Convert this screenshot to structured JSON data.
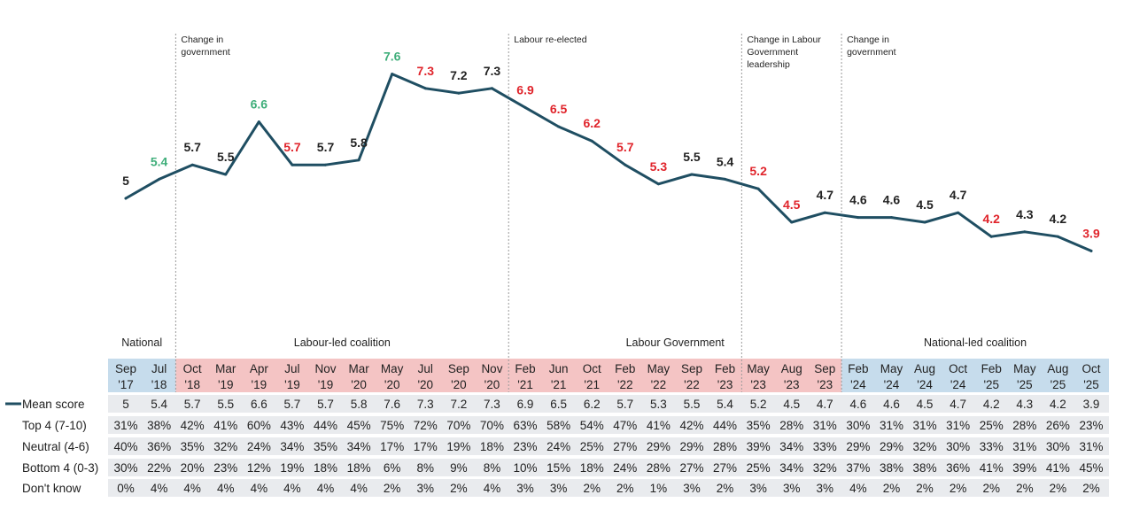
{
  "chart_data": {
    "type": "line",
    "series": [
      {
        "name": "Mean score",
        "values": [
          5,
          5.4,
          5.7,
          5.5,
          6.6,
          5.7,
          5.7,
          5.8,
          7.6,
          7.3,
          7.2,
          7.3,
          6.9,
          6.5,
          6.2,
          5.7,
          5.3,
          5.5,
          5.4,
          5.2,
          4.5,
          4.7,
          4.6,
          4.6,
          4.5,
          4.7,
          4.2,
          4.3,
          4.2,
          3.9
        ]
      }
    ],
    "categories": [
      [
        "Sep",
        "'17"
      ],
      [
        "Jul",
        "'18"
      ],
      [
        "Oct",
        "'18"
      ],
      [
        "Mar",
        "'19"
      ],
      [
        "Apr",
        "'19"
      ],
      [
        "Jul",
        "'19"
      ],
      [
        "Nov",
        "'19"
      ],
      [
        "Mar",
        "'20"
      ],
      [
        "May",
        "'20"
      ],
      [
        "Jul",
        "'20"
      ],
      [
        "Sep",
        "'20"
      ],
      [
        "Nov",
        "'20"
      ],
      [
        "Feb",
        "'21"
      ],
      [
        "Jun",
        "'21"
      ],
      [
        "Oct",
        "'21"
      ],
      [
        "Feb",
        "'22"
      ],
      [
        "May",
        "'22"
      ],
      [
        "Sep",
        "'22"
      ],
      [
        "Feb",
        "'23"
      ],
      [
        "May",
        "'23"
      ],
      [
        "Aug",
        "'23"
      ],
      [
        "Sep",
        "'23"
      ],
      [
        "Feb",
        "'24"
      ],
      [
        "May",
        "'24"
      ],
      [
        "Aug",
        "'24"
      ],
      [
        "Oct",
        "'24"
      ],
      [
        "Feb",
        "'25"
      ],
      [
        "May",
        "'25"
      ],
      [
        "Aug",
        "'25"
      ],
      [
        "Oct",
        "'25"
      ]
    ],
    "label_colors": [
      "black",
      "green",
      "black",
      "black",
      "green",
      "red",
      "black",
      "black",
      "green",
      "red",
      "black",
      "black",
      "red",
      "red",
      "red",
      "red",
      "red",
      "black",
      "black",
      "red",
      "red",
      "black",
      "black",
      "black",
      "black",
      "black",
      "red",
      "black",
      "black",
      "red"
    ],
    "label_texts": [
      "5",
      "5.4",
      "5.7",
      "5.5",
      "6.6",
      "5.7",
      "5.7",
      "5.8",
      "7.6",
      "7.3",
      "7.2",
      "7.3",
      "6.9",
      "6.5",
      "6.2",
      "5.7",
      "5.3",
      "5.5",
      "5.4",
      "5.2",
      "4.5",
      "4.7",
      "4.6",
      "4.6",
      "4.5",
      "4.7",
      "4.2",
      "4.3",
      "4.2",
      "3.9"
    ],
    "y_range": [
      3.0,
      8.5
    ],
    "events": [
      {
        "after_index": 1,
        "lines": [
          "Change in",
          "government"
        ]
      },
      {
        "after_index": 11,
        "lines": [
          "Labour re-elected"
        ]
      },
      {
        "after_index": 18,
        "lines": [
          "Change in Labour",
          "Government",
          "leadership"
        ]
      },
      {
        "after_index": 21,
        "lines": [
          "Change in",
          "government"
        ]
      }
    ],
    "periods": [
      {
        "label": "National",
        "start": 0,
        "end": 1,
        "shade": "blue"
      },
      {
        "label": "Labour-led coalition",
        "start": 2,
        "end": 11,
        "shade": "pink"
      },
      {
        "label": "Labour Government",
        "start": 12,
        "end": 21,
        "shade": "pink"
      },
      {
        "label": "National-led coalition",
        "start": 22,
        "end": 29,
        "shade": "blue"
      }
    ],
    "table": {
      "rows": [
        {
          "label": "Mean score",
          "legend_line": true,
          "values": [
            "5",
            "5.4",
            "5.7",
            "5.5",
            "6.6",
            "5.7",
            "5.7",
            "5.8",
            "7.6",
            "7.3",
            "7.2",
            "7.3",
            "6.9",
            "6.5",
            "6.2",
            "5.7",
            "5.3",
            "5.5",
            "5.4",
            "5.2",
            "4.5",
            "4.7",
            "4.6",
            "4.6",
            "4.5",
            "4.7",
            "4.2",
            "4.3",
            "4.2",
            "3.9"
          ]
        },
        {
          "label": "Top 4 (7-10)",
          "values": [
            "31%",
            "38%",
            "42%",
            "41%",
            "60%",
            "43%",
            "44%",
            "45%",
            "75%",
            "72%",
            "70%",
            "70%",
            "63%",
            "58%",
            "54%",
            "47%",
            "41%",
            "42%",
            "44%",
            "35%",
            "28%",
            "31%",
            "30%",
            "31%",
            "31%",
            "31%",
            "25%",
            "28%",
            "26%",
            "23%"
          ]
        },
        {
          "label": "Neutral (4-6)",
          "values": [
            "40%",
            "36%",
            "35%",
            "32%",
            "24%",
            "34%",
            "35%",
            "34%",
            "17%",
            "17%",
            "19%",
            "18%",
            "23%",
            "24%",
            "25%",
            "27%",
            "29%",
            "29%",
            "28%",
            "39%",
            "34%",
            "33%",
            "29%",
            "29%",
            "32%",
            "30%",
            "33%",
            "31%",
            "30%",
            "31%"
          ]
        },
        {
          "label": "Bottom 4 (0-3)",
          "values": [
            "30%",
            "22%",
            "20%",
            "23%",
            "12%",
            "19%",
            "18%",
            "18%",
            "6%",
            "8%",
            "9%",
            "8%",
            "10%",
            "15%",
            "18%",
            "24%",
            "28%",
            "27%",
            "27%",
            "25%",
            "34%",
            "32%",
            "37%",
            "38%",
            "38%",
            "36%",
            "41%",
            "39%",
            "41%",
            "45%"
          ]
        },
        {
          "label": "Don't know",
          "values": [
            "0%",
            "4%",
            "4%",
            "4%",
            "4%",
            "4%",
            "4%",
            "4%",
            "2%",
            "3%",
            "2%",
            "4%",
            "3%",
            "3%",
            "2%",
            "2%",
            "1%",
            "3%",
            "2%",
            "3%",
            "3%",
            "3%",
            "4%",
            "2%",
            "2%",
            "2%",
            "2%",
            "2%",
            "2%",
            "2%"
          ]
        }
      ]
    },
    "colors": {
      "line": "#1f4e62",
      "green": "#3fae7a",
      "red": "#e0242b",
      "black": "#222222",
      "blue_shade": "#c6dcec",
      "pink_shade": "#f4c4c4",
      "row_band": "#e9ebee",
      "divider": "#9a9a9a"
    }
  }
}
